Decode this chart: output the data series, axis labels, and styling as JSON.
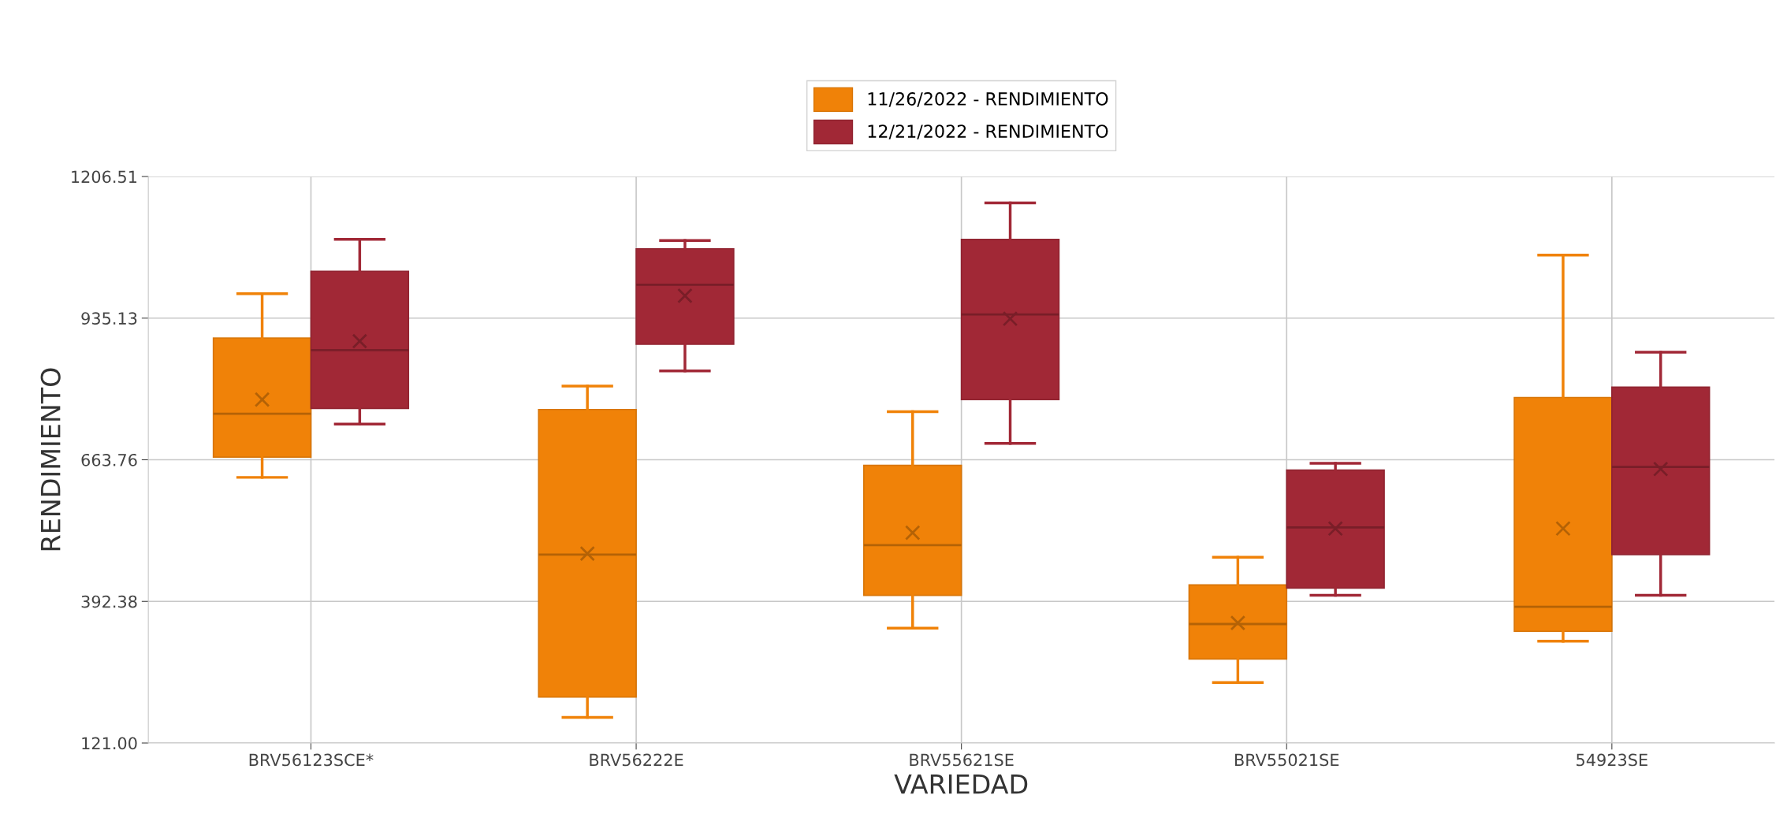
{
  "chart_data": {
    "type": "box",
    "xlabel": "VARIEDAD",
    "ylabel": "RENDIMIENTO",
    "categories": [
      "BRV56123SCE*",
      "BRV56222E",
      "BRV55621SE",
      "BRV55021SE",
      "54923SE"
    ],
    "ylim": [
      121.0,
      1206.51
    ],
    "yticks": [
      {
        "value": 121.0,
        "label": "121.00"
      },
      {
        "value": 392.38,
        "label": "392.38"
      },
      {
        "value": 663.76,
        "label": "663.76"
      },
      {
        "value": 935.13,
        "label": "935.13"
      },
      {
        "value": 1206.51,
        "label": "1206.51"
      }
    ],
    "grid": true,
    "legend": "top",
    "series": [
      {
        "name": "11/26/2022 - RENDIMIENTO",
        "color": "#f08208",
        "boxes": [
          {
            "low": 630,
            "q1": 669,
            "median": 752,
            "q3": 897,
            "high": 982,
            "mean": 779
          },
          {
            "low": 170,
            "q1": 209,
            "median": 482,
            "q3": 760,
            "high": 805,
            "mean": 484
          },
          {
            "low": 341,
            "q1": 404,
            "median": 500,
            "q3": 653,
            "high": 756,
            "mean": 524
          },
          {
            "low": 237,
            "q1": 282,
            "median": 349,
            "q3": 424,
            "high": 477,
            "mean": 351
          },
          {
            "low": 316,
            "q1": 335,
            "median": 382,
            "q3": 783,
            "high": 1056,
            "mean": 532
          }
        ]
      },
      {
        "name": "12/21/2022 - RENDIMIENTO",
        "color": "#a12836",
        "boxes": [
          {
            "low": 732,
            "q1": 762,
            "median": 874,
            "q3": 1025,
            "high": 1086,
            "mean": 891
          },
          {
            "low": 834,
            "q1": 885,
            "median": 999,
            "q3": 1068,
            "high": 1084,
            "mean": 978
          },
          {
            "low": 695,
            "q1": 779,
            "median": 942,
            "q3": 1086,
            "high": 1156,
            "mean": 934
          },
          {
            "low": 404,
            "q1": 418,
            "median": 534,
            "q3": 644,
            "high": 657,
            "mean": 532
          },
          {
            "low": 404,
            "q1": 482,
            "median": 650,
            "q3": 803,
            "high": 870,
            "mean": 646
          }
        ]
      }
    ]
  }
}
